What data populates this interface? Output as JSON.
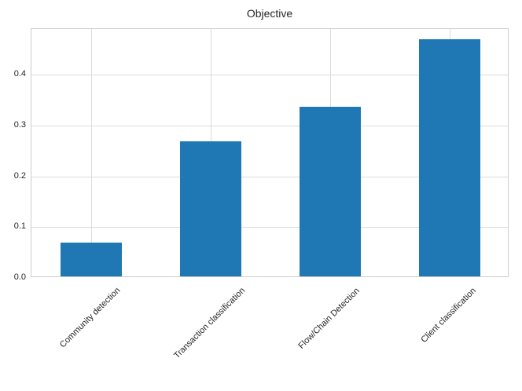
{
  "chart_data": {
    "type": "bar",
    "title": "Objective",
    "categories": [
      "Community detection",
      "Transaction classification",
      "Flow/Chain Detection",
      "Client classification"
    ],
    "values": [
      0.0667,
      0.2667,
      0.3333,
      0.4667
    ],
    "xlabel": "",
    "ylabel": "",
    "ylim": [
      0,
      0.49
    ],
    "yticks": [
      0,
      0.1,
      0.2,
      0.3,
      0.4
    ],
    "ytick_labels": [
      "0.0",
      "0.1",
      "0.2",
      "0.3",
      "0.4"
    ],
    "xtick_rotation_deg": 45,
    "grid": true,
    "legend_position": "none",
    "bar_color": "#1f77b4",
    "grid_color": "#dcdcdc",
    "spine_color": "#cccccc",
    "text_color": "#262626",
    "background_color": "#ffffff"
  }
}
